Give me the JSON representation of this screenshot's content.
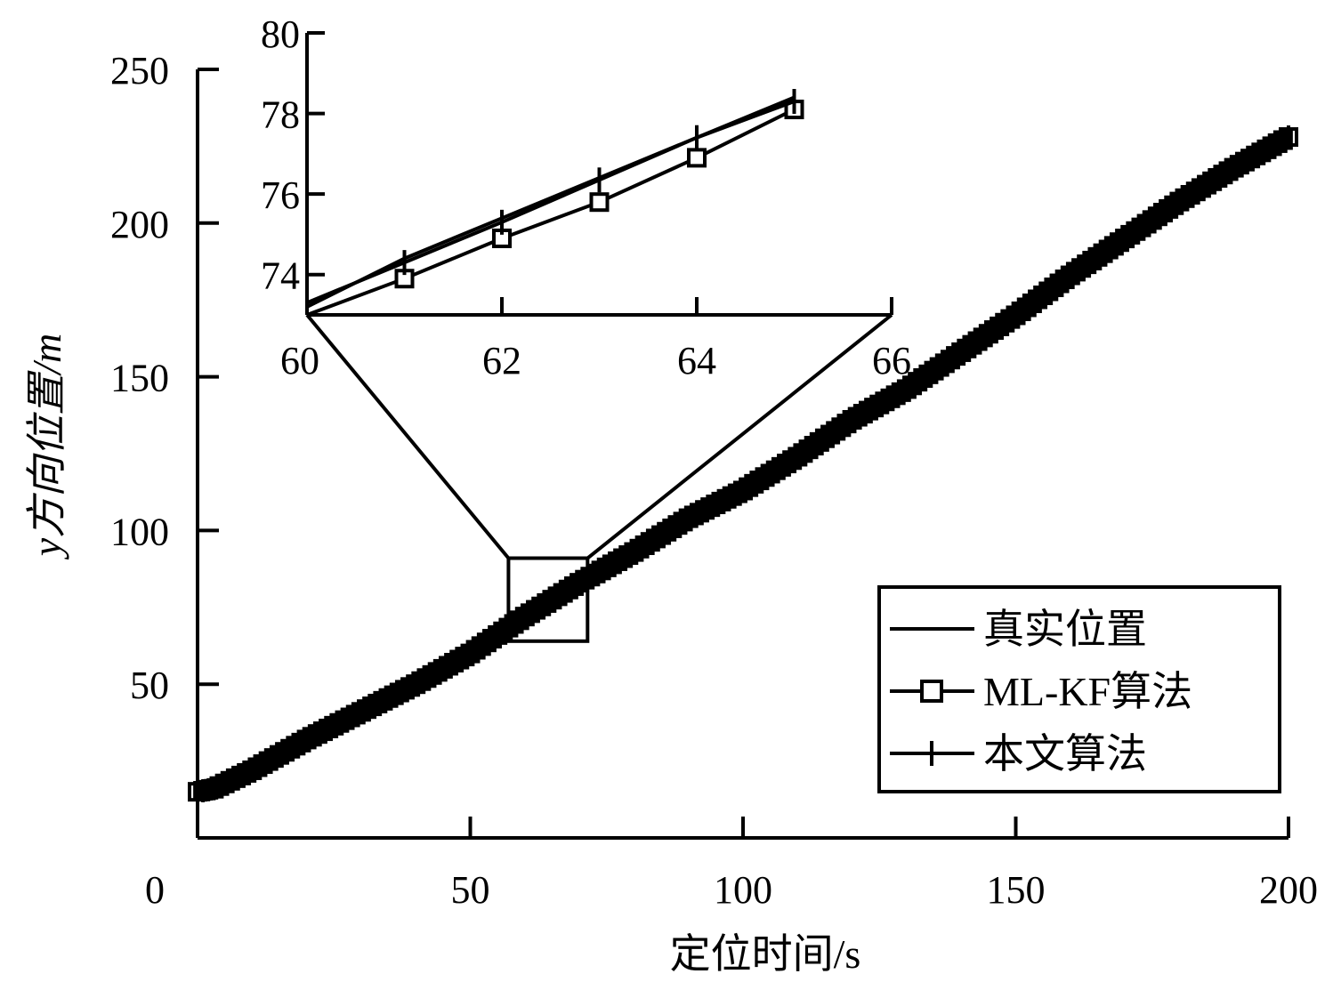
{
  "chart_data": [
    {
      "type": "line",
      "role": "main",
      "xlabel": "定位时间/s",
      "ylabel": "y方向位置/m",
      "xlim": [
        0,
        200
      ],
      "ylim": [
        0,
        250
      ],
      "xticks": [
        0,
        50,
        100,
        150,
        200
      ],
      "yticks": [
        50,
        100,
        150,
        200,
        250
      ],
      "xtick_labels": [
        "0",
        "50",
        "100",
        "150",
        "200"
      ],
      "ytick_labels": [
        "50",
        "100",
        "150",
        "200",
        "250"
      ],
      "legend_position": "bottom-right",
      "series": [
        {
          "name": "真实位置",
          "marker": "none"
        },
        {
          "name": "ML-KF算法",
          "marker": "square"
        },
        {
          "name": "本文算法",
          "marker": "plus"
        }
      ],
      "trajectory": {
        "x": [
          0,
          3,
          10,
          20,
          30,
          40,
          50,
          60,
          70,
          80,
          90,
          100,
          110,
          120,
          130,
          140,
          150,
          160,
          170,
          180,
          190,
          200
        ],
        "y": [
          15,
          16,
          22,
          32,
          41,
          50,
          60,
          72,
          83,
          93,
          104,
          113,
          124,
          136,
          146,
          158,
          170,
          183,
          195,
          207,
          218,
          228
        ]
      },
      "zoom_box": {
        "x": [
          57,
          71.5
        ],
        "y": [
          64,
          91
        ]
      }
    },
    {
      "type": "line",
      "role": "inset",
      "xlim": [
        60,
        66
      ],
      "ylim": [
        73,
        80
      ],
      "xticks": [
        60,
        62,
        64,
        66
      ],
      "yticks": [
        74,
        76,
        78,
        80
      ],
      "xtick_labels": [
        "60",
        "62",
        "64",
        "66"
      ],
      "ytick_labels": [
        "74",
        "76",
        "78",
        "80"
      ],
      "x": [
        60,
        61,
        62,
        63,
        64,
        65
      ],
      "series": [
        {
          "name": "真实位置",
          "values": [
            73.2,
            74.4,
            75.4,
            76.4,
            77.4,
            78.4
          ]
        },
        {
          "name": "ML-KF算法",
          "values": [
            73.0,
            73.9,
            74.9,
            75.8,
            76.9,
            78.1
          ]
        },
        {
          "name": "本文算法",
          "values": [
            73.3,
            74.3,
            75.3,
            76.35,
            77.4,
            78.3
          ]
        }
      ]
    }
  ]
}
